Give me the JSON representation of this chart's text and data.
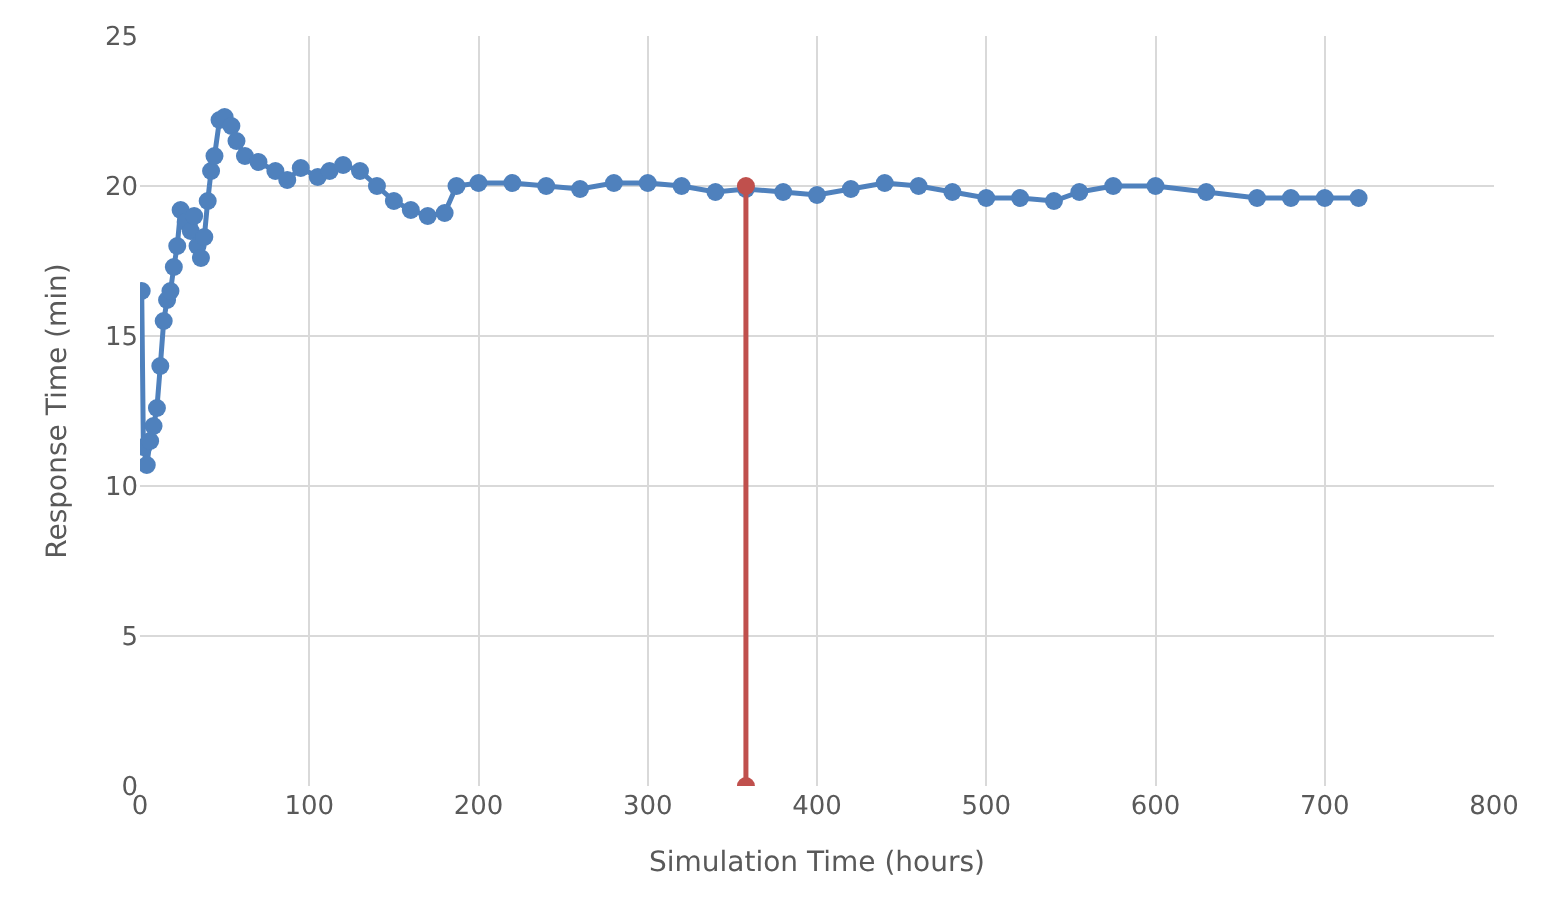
{
  "chart_data": {
    "type": "line",
    "xlabel": "Simulation Time (hours)",
    "ylabel": "Response Time (min)",
    "xlim": [
      0,
      800
    ],
    "xticks": [
      0,
      100,
      200,
      300,
      400,
      500,
      600,
      700,
      800
    ],
    "ylim": [
      0,
      25
    ],
    "yticks": [
      0,
      5,
      10,
      15,
      20,
      25
    ],
    "grid": true,
    "marker": "circle",
    "line_style": "solid",
    "series": [
      {
        "color": "#4f81bd",
        "x": [
          1,
          2,
          4,
          6,
          8,
          10,
          12,
          14,
          16,
          18,
          20,
          22,
          24,
          27,
          30,
          32,
          34,
          36,
          38,
          40,
          42,
          44,
          47,
          50,
          54,
          57,
          62,
          70,
          80,
          87,
          95,
          105,
          112,
          120,
          130,
          140,
          150,
          160,
          170,
          180,
          187,
          200,
          220,
          240,
          260,
          280,
          300,
          320,
          340,
          358,
          380,
          400,
          420,
          440,
          460,
          480,
          500,
          520,
          540,
          555,
          575,
          600,
          630,
          660,
          680,
          700,
          720
        ],
        "values": [
          16.5,
          11.3,
          10.7,
          11.5,
          12,
          12.6,
          14,
          15.5,
          16.2,
          16.5,
          17.3,
          18,
          19.2,
          18.8,
          18.5,
          19,
          18,
          17.6,
          18.3,
          19.5,
          20.5,
          21,
          22.2,
          22.3,
          22,
          21.5,
          21,
          20.8,
          20.5,
          20.2,
          20.6,
          20.3,
          20.5,
          20.7,
          20.5,
          20,
          19.5,
          19.2,
          19,
          19.1,
          20,
          20.1,
          20.1,
          20,
          19.9,
          20.1,
          20.1,
          20,
          19.8,
          19.9,
          19.8,
          19.7,
          19.9,
          20.1,
          20,
          19.8,
          19.6,
          19.6,
          19.5,
          19.8,
          20,
          20,
          19.8,
          19.6,
          19.6,
          19.6,
          19.6
        ]
      },
      {
        "color": "#c0504d",
        "x": [
          358,
          358
        ],
        "values": [
          0,
          20
        ]
      }
    ]
  }
}
